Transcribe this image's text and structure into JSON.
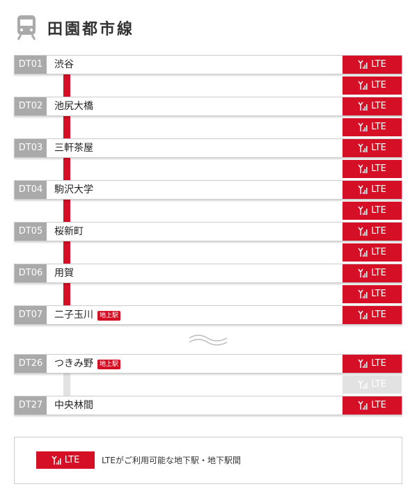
{
  "header": {
    "title": "田園都市線"
  },
  "sections": [
    {
      "stations": [
        {
          "code": "DT01",
          "name": "渋谷",
          "lte": "LTE"
        },
        {
          "code": "DT02",
          "name": "池尻大橋",
          "lte": "LTE"
        },
        {
          "code": "DT03",
          "name": "三軒茶屋",
          "lte": "LTE"
        },
        {
          "code": "DT04",
          "name": "駒沢大学",
          "lte": "LTE"
        },
        {
          "code": "DT05",
          "name": "桜新町",
          "lte": "LTE"
        },
        {
          "code": "DT06",
          "name": "用賀",
          "lte": "LTE"
        },
        {
          "code": "DT07",
          "name": "二子玉川",
          "tag": "地上駅",
          "lte": "LTE"
        }
      ],
      "segments": [
        {
          "lte": "LTE",
          "available": true
        },
        {
          "lte": "LTE",
          "available": true
        },
        {
          "lte": "LTE",
          "available": true
        },
        {
          "lte": "LTE",
          "available": true
        },
        {
          "lte": "LTE",
          "available": true
        },
        {
          "lte": "LTE",
          "available": true
        }
      ]
    },
    {
      "stations": [
        {
          "code": "DT26",
          "name": "つきみ野",
          "tag": "地上駅",
          "lte": "LTE"
        },
        {
          "code": "DT27",
          "name": "中央林間",
          "lte": "LTE"
        }
      ],
      "segments": [
        {
          "lte": "LTE",
          "available": false
        }
      ]
    }
  ],
  "legend": {
    "badge": "LTE",
    "text": "LTEがご利用可能な地下駅・地下駅間"
  }
}
